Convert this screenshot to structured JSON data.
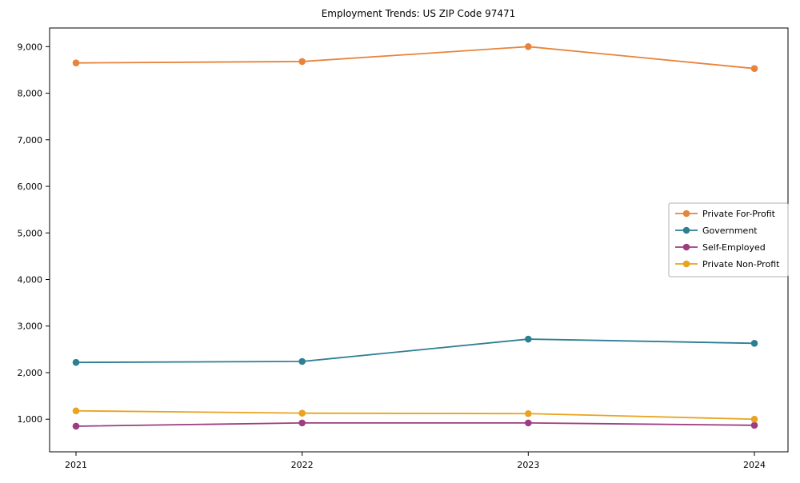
{
  "chart_data": {
    "type": "line",
    "title": "Employment Trends: US ZIP Code 97471",
    "x": [
      "2021",
      "2022",
      "2023",
      "2024"
    ],
    "series": [
      {
        "name": "Private For-Profit",
        "color": "#e8833b",
        "values": [
          8650,
          8680,
          9000,
          8530
        ]
      },
      {
        "name": "Government",
        "color": "#2d7f93",
        "values": [
          2220,
          2240,
          2720,
          2630
        ]
      },
      {
        "name": "Self-Employed",
        "color": "#9c3d82",
        "values": [
          850,
          920,
          920,
          870
        ]
      },
      {
        "name": "Private Non-Profit",
        "color": "#e9a31f",
        "values": [
          1180,
          1130,
          1120,
          1000
        ]
      }
    ],
    "xlabel": "",
    "ylabel": "",
    "ylim": [
      300,
      9400
    ],
    "yticks": [
      1000,
      2000,
      3000,
      4000,
      5000,
      6000,
      7000,
      8000,
      9000
    ],
    "ytick_labels": [
      "1,000",
      "2,000",
      "3,000",
      "4,000",
      "5,000",
      "6,000",
      "7,000",
      "8,000",
      "9,000"
    ],
    "grid": false,
    "legend_position": "center-right",
    "axis_color": "#000000",
    "legend_border_color": "#b0b0b0",
    "background_color": "#ffffff"
  }
}
